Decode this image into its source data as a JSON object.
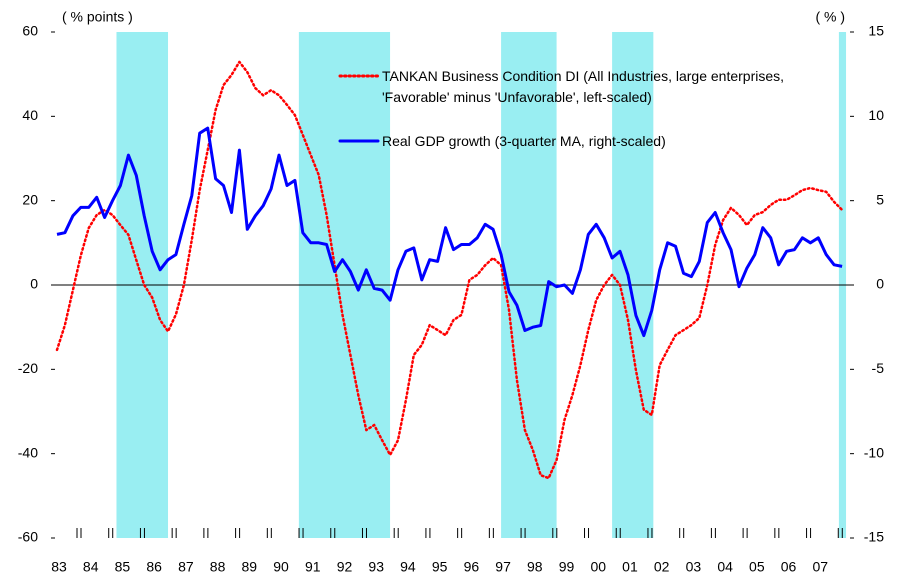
{
  "chart_data": {
    "type": "line",
    "y_label": "( % points )",
    "y2_label": "( % )",
    "categories": [
      "83",
      null,
      null,
      null,
      "84",
      null,
      null,
      null,
      "85",
      null,
      null,
      null,
      "86",
      null,
      null,
      null,
      "87",
      null,
      null,
      null,
      "88",
      null,
      null,
      null,
      "89",
      null,
      null,
      null,
      "90",
      null,
      null,
      null,
      "91",
      null,
      null,
      null,
      "92",
      null,
      null,
      null,
      "93",
      null,
      null,
      null,
      "94",
      null,
      null,
      null,
      "95",
      null,
      null,
      null,
      "96",
      null,
      null,
      null,
      "97",
      null,
      null,
      null,
      "98",
      null,
      null,
      null,
      "99",
      null,
      null,
      null,
      "00",
      null,
      null,
      null,
      "01",
      null,
      null,
      null,
      "02",
      null,
      null,
      null,
      "03",
      null,
      null,
      null,
      "04",
      null,
      null,
      null,
      "05",
      null,
      null,
      null,
      "06",
      null,
      null,
      null,
      "07",
      null,
      null,
      null
    ],
    "series": [
      {
        "name": "TANKAN Business Condition DI (All Industries, large enterprises, 'Favorable' minus 'Unfavorable', left-scaled)",
        "color": "#ff0000",
        "style": "dotted",
        "values": [
          -15.4,
          -9.5,
          -1.2,
          7,
          13.5,
          16.6,
          17.8,
          16.6,
          14.2,
          11.9,
          5.9,
          0,
          -3,
          -8.3,
          -11,
          -7,
          0,
          10.7,
          22.5,
          32,
          41.5,
          47.4,
          49.8,
          52.9,
          50.5,
          46.7,
          45,
          46.2,
          45,
          42.7,
          40.3,
          35.6,
          30.8,
          26.1,
          16.6,
          4.7,
          -7.1,
          -16.6,
          -26.1,
          -34.4,
          -33.2,
          -36.8,
          -40.3,
          -36.8,
          -27.3,
          -16.6,
          -14.2,
          -9.5,
          -10.7,
          -11.9,
          -8.3,
          -7.1,
          1.2,
          2.4,
          4.7,
          6.4,
          4.7,
          -5.9,
          -22.5,
          -34.4,
          -39.1,
          -45.1,
          -45.8,
          -41.5,
          -32,
          -26.1,
          -19,
          -10.7,
          -3.6,
          0,
          2.4,
          0,
          -8.3,
          -20.2,
          -29.6,
          -30.8,
          -19,
          -15.4,
          -11.9,
          -10.7,
          -9.5,
          -7.8,
          0,
          9.5,
          15.4,
          18.3,
          16.6,
          14.2,
          16.6,
          17.3,
          19,
          20.2,
          20.2,
          21.3,
          22.5,
          23,
          22.5,
          22.1,
          19.7,
          17.8
        ]
      },
      {
        "name": "Real GDP growth (3-quarter MA, right-scaled)",
        "color": "#0000ff",
        "style": "solid",
        "axis": "y2",
        "values": [
          3.0,
          3.1,
          4.1,
          4.6,
          4.6,
          5.2,
          4.0,
          5.0,
          5.9,
          7.7,
          6.5,
          4.1,
          2.0,
          0.9,
          1.5,
          1.8,
          3.6,
          5.3,
          9.0,
          9.3,
          6.3,
          5.9,
          4.3,
          8.0,
          3.3,
          4.1,
          4.7,
          5.7,
          7.7,
          5.9,
          6.2,
          3.1,
          2.5,
          2.5,
          2.4,
          0.8,
          1.5,
          0.8,
          -0.3,
          0.9,
          -0.2,
          -0.3,
          -0.9,
          0.9,
          2.0,
          2.2,
          0.3,
          1.5,
          1.4,
          3.4,
          2.1,
          2.4,
          2.4,
          2.8,
          3.6,
          3.3,
          1.8,
          -0.4,
          -1.2,
          -2.7,
          -2.5,
          -2.4,
          0.2,
          -0.1,
          0,
          -0.5,
          0.9,
          3.0,
          3.6,
          2.8,
          1.6,
          2.0,
          0.6,
          -1.8,
          -3.0,
          -1.5,
          0.9,
          2.5,
          2.3,
          0.7,
          0.5,
          1.4,
          3.7,
          4.3,
          3.1,
          2.1,
          -0.1,
          1.0,
          1.8,
          3.4,
          2.8,
          1.2,
          2.0,
          2.1,
          2.8,
          2.5,
          2.8,
          1.8,
          1.2,
          1.1
        ]
      }
    ],
    "shaded": [
      [
        7.5,
        14
      ],
      [
        30.5,
        42
      ],
      [
        56,
        63
      ],
      [
        70,
        75.2
      ],
      [
        98.6,
        99.5
      ]
    ],
    "shade_color": "#99eef2",
    "ylim": [
      -60,
      60
    ],
    "yticks": [
      60,
      40,
      20,
      0,
      -20,
      -40,
      -60
    ],
    "y2lim": [
      -15,
      15
    ],
    "y2ticks": [
      15,
      10,
      5,
      0,
      -5,
      -10,
      -15
    ]
  }
}
